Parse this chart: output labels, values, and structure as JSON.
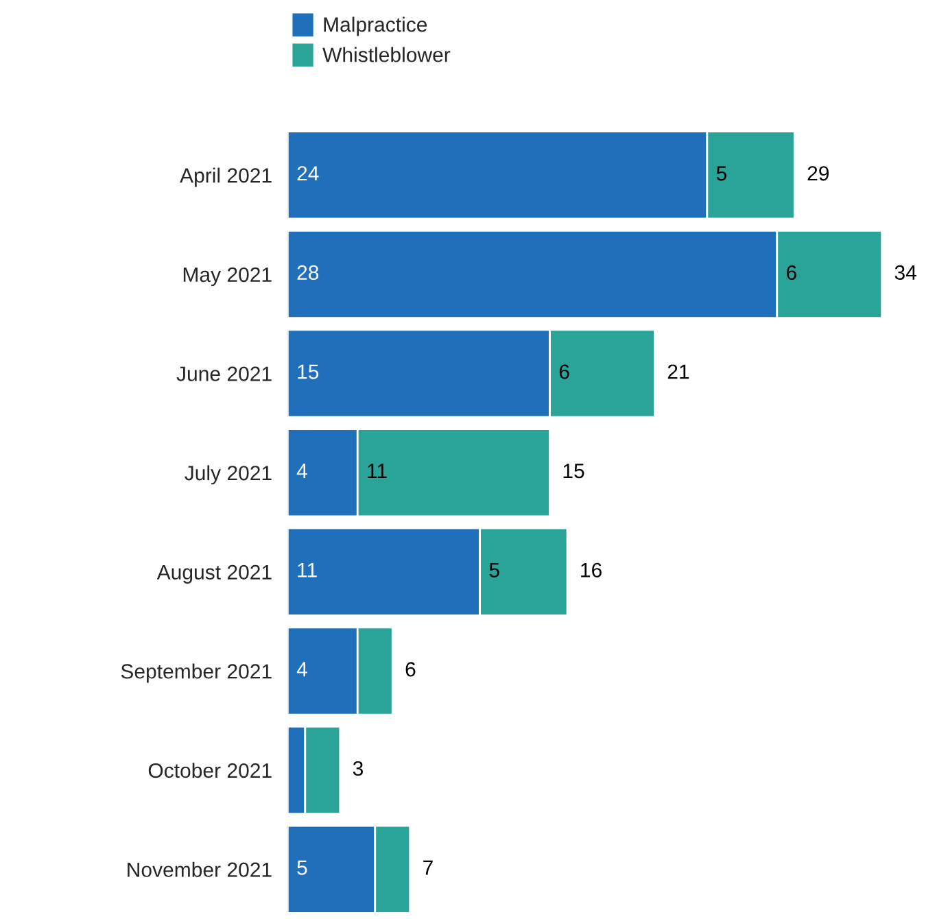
{
  "chart_data": {
    "type": "bar",
    "orientation": "horizontal",
    "stacked": true,
    "legend": "top",
    "categories": [
      "April 2021",
      "May 2021",
      "June 2021",
      "July 2021",
      "August 2021",
      "September 2021",
      "October 2021",
      "November 2021"
    ],
    "series": [
      {
        "name": "Malpractice",
        "color": "#1f6fba",
        "values": [
          24,
          28,
          15,
          4,
          11,
          4,
          1,
          5
        ],
        "value_labels": [
          "24",
          "28",
          "15",
          "4",
          "11",
          "4",
          null,
          "5"
        ]
      },
      {
        "name": "Whistleblower",
        "color": "#2aa398",
        "values": [
          5,
          6,
          6,
          11,
          5,
          2,
          2,
          2
        ],
        "value_labels": [
          "5",
          "6",
          "6",
          "11",
          "5",
          null,
          null,
          null
        ]
      }
    ],
    "totals": [
      "29",
      "34",
      "21",
      "15",
      "16",
      "6",
      "3",
      "7"
    ]
  }
}
